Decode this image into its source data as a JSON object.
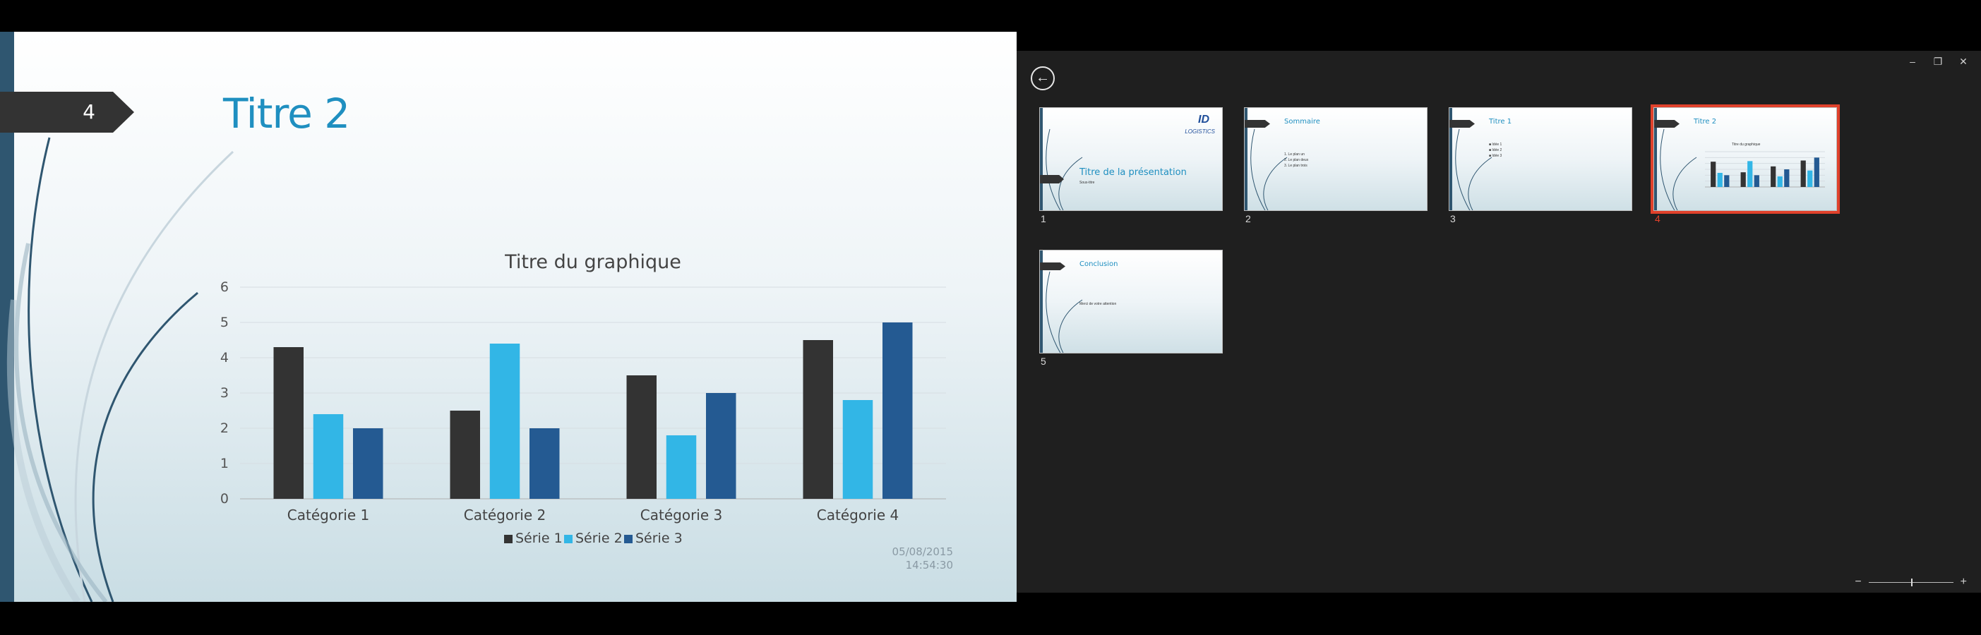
{
  "slide": {
    "number": "4",
    "title": "Titre 2",
    "footer_date": "05/08/2015",
    "footer_time": "14:54:30"
  },
  "chart_data": {
    "type": "bar",
    "title": "Titre du graphique",
    "categories": [
      "Catégorie 1",
      "Catégorie 2",
      "Catégorie 3",
      "Catégorie 4"
    ],
    "series": [
      {
        "name": "Série 1",
        "values": [
          4.3,
          2.5,
          3.5,
          4.5
        ],
        "color": "#333333"
      },
      {
        "name": "Série 2",
        "values": [
          2.4,
          4.4,
          1.8,
          2.8
        ],
        "color": "#32b6e6"
      },
      {
        "name": "Série 3",
        "values": [
          2.0,
          2.0,
          3.0,
          5.0
        ],
        "color": "#245a92"
      }
    ],
    "ylim": [
      0,
      6
    ],
    "yticks": [
      "0",
      "1",
      "2",
      "3",
      "4",
      "5",
      "6"
    ],
    "grid": true,
    "legend": "bottom"
  },
  "sorter": {
    "slides": [
      {
        "num": "1",
        "title": "Titre de la présentation",
        "subtitle": "Sous-titre",
        "logo_text": "LOGISTICS",
        "logo_id": "ID"
      },
      {
        "num": "2",
        "title": "Sommaire",
        "lines": [
          "1. Le plan un",
          "2. Le plan deux",
          "3. Le plan trois"
        ]
      },
      {
        "num": "3",
        "title": "Titre 1",
        "lines": [
          "■ Idée 1",
          "■ Idée 2",
          "■ Idée 3"
        ]
      },
      {
        "num": "4",
        "title": "Titre 2",
        "chart_title": "Titre du graphique"
      },
      {
        "num": "5",
        "title": "Conclusion",
        "lines": [
          "Merci de votre attention"
        ]
      }
    ],
    "selected_index": 3,
    "zoom_minus": "−",
    "zoom_plus": "+"
  },
  "colors": {
    "accent": "#1f8fc0",
    "selection": "#e0412b",
    "sidebar_blue": "#2f5670"
  }
}
